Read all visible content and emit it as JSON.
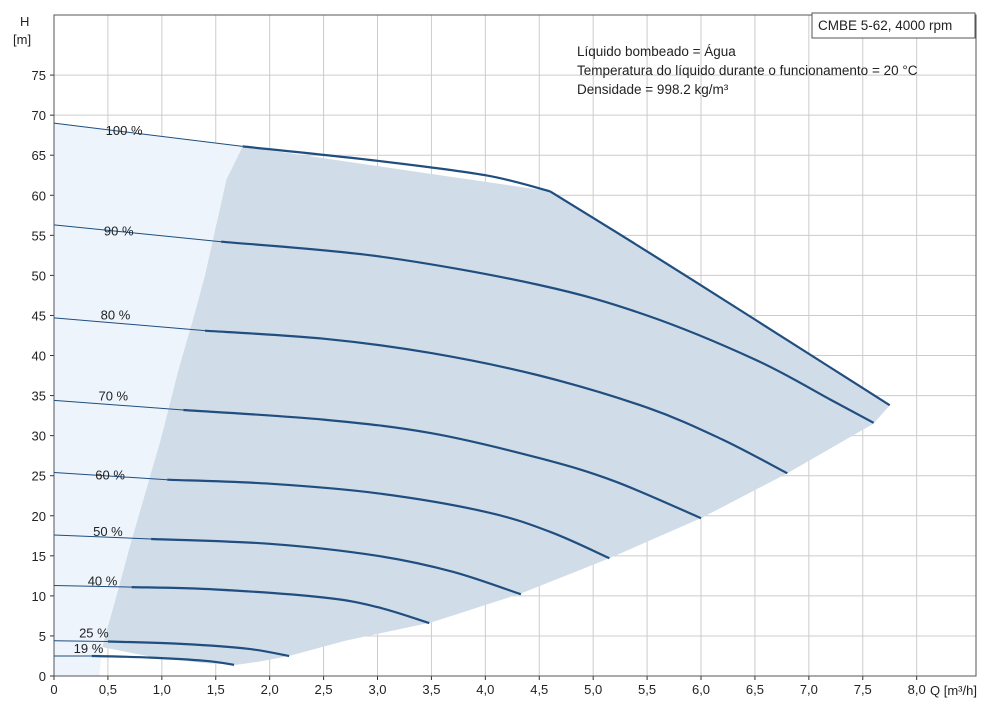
{
  "chart_data": {
    "type": "line",
    "title": "CMBE 5-62, 4000 rpm",
    "info_lines": [
      "Líquido bombeado = Água",
      "Temperatura do líquido durante o funcionamento = 20 °C",
      "Densidade = 998.2 kg/m³"
    ],
    "ylabel_top": "H",
    "ylabel_unit": "[m]",
    "xlabel": "Q [m³/h]",
    "xlim": [
      0,
      8.55
    ],
    "ylim": [
      0,
      82.5
    ],
    "grid": true,
    "x_ticks": [
      "0",
      "0,5",
      "1,0",
      "1,5",
      "2,0",
      "2,5",
      "3,0",
      "3,5",
      "4,0",
      "4,5",
      "5,0",
      "5,5",
      "6,0",
      "6,5",
      "7,0",
      "7,5",
      "8,0"
    ],
    "y_ticks": [
      "0",
      "5",
      "10",
      "15",
      "20",
      "25",
      "30",
      "35",
      "40",
      "45",
      "50",
      "55",
      "60",
      "65",
      "70",
      "75"
    ],
    "colors": {
      "curve": "#1f4e7f",
      "operating_area": "#d0dce8",
      "low_flow_area": "#edf4fc",
      "grid": "#cccccc"
    },
    "operating_area_boundary": [
      [
        0,
        0
      ],
      [
        0,
        69
      ],
      [
        1.7,
        66
      ],
      [
        1.6,
        62
      ],
      [
        1.55,
        58
      ],
      [
        1.45,
        53
      ],
      [
        1.35,
        48
      ],
      [
        1.2,
        41
      ],
      [
        1.05,
        33
      ],
      [
        0.9,
        26
      ],
      [
        0.75,
        19
      ],
      [
        0.65,
        13
      ],
      [
        0.55,
        7
      ],
      [
        0.45,
        3.5
      ],
      [
        0.4,
        0
      ],
      [
        1.7,
        0
      ],
      [
        1.7,
        1.5
      ],
      [
        2.2,
        2.6
      ],
      [
        3.5,
        6.7
      ],
      [
        4.33,
        10.3
      ],
      [
        5.15,
        14.7
      ],
      [
        6.0,
        19.7
      ],
      [
        6.8,
        25.3
      ],
      [
        7.6,
        31.5
      ],
      [
        7.75,
        33.8
      ],
      [
        4.6,
        60.5
      ],
      [
        1.7,
        66.1
      ]
    ],
    "series": [
      {
        "name": "100 %",
        "points": [
          [
            0,
            69
          ],
          [
            1.75,
            66.1
          ],
          [
            3.0,
            64.3
          ],
          [
            4.0,
            62.5
          ],
          [
            4.6,
            60.5
          ],
          [
            5.5,
            53
          ],
          [
            6.5,
            44.5
          ],
          [
            7.2,
            38.5
          ],
          [
            7.75,
            33.8
          ]
        ]
      },
      {
        "name": "90 %",
        "points": [
          [
            0,
            56.3
          ],
          [
            1.55,
            54.2
          ],
          [
            3.0,
            52.4
          ],
          [
            4.5,
            48.8
          ],
          [
            5.5,
            45
          ],
          [
            6.5,
            39.5
          ],
          [
            7.2,
            34.5
          ],
          [
            7.6,
            31.6
          ]
        ]
      },
      {
        "name": "80 %",
        "points": [
          [
            0,
            44.7
          ],
          [
            1.4,
            43.1
          ],
          [
            2.5,
            42.1
          ],
          [
            3.5,
            40.3
          ],
          [
            4.5,
            37.5
          ],
          [
            5.5,
            33.5
          ],
          [
            6.2,
            29.5
          ],
          [
            6.8,
            25.3
          ]
        ]
      },
      {
        "name": "70 %",
        "points": [
          [
            0,
            34.4
          ],
          [
            1.2,
            33.2
          ],
          [
            2.5,
            32
          ],
          [
            3.5,
            30.3
          ],
          [
            4.5,
            27.2
          ],
          [
            5.2,
            24.3
          ],
          [
            6.0,
            19.7
          ]
        ]
      },
      {
        "name": "60 %",
        "points": [
          [
            0,
            25.4
          ],
          [
            1.05,
            24.5
          ],
          [
            2.0,
            24
          ],
          [
            3.0,
            22.8
          ],
          [
            4.0,
            20.5
          ],
          [
            4.6,
            18
          ],
          [
            5.15,
            14.7
          ]
        ]
      },
      {
        "name": "50 %",
        "points": [
          [
            0,
            17.6
          ],
          [
            0.9,
            17.1
          ],
          [
            2.0,
            16.5
          ],
          [
            3.0,
            15
          ],
          [
            3.7,
            13
          ],
          [
            4.33,
            10.2
          ]
        ]
      },
      {
        "name": "40 %",
        "points": [
          [
            0,
            11.3
          ],
          [
            0.72,
            11.1
          ],
          [
            1.5,
            10.8
          ],
          [
            2.5,
            9.8
          ],
          [
            3.0,
            8.6
          ],
          [
            3.48,
            6.6
          ]
        ]
      },
      {
        "name": "25 %",
        "points": [
          [
            0,
            4.4
          ],
          [
            0.5,
            4.3
          ],
          [
            1.2,
            4
          ],
          [
            1.8,
            3.4
          ],
          [
            2.18,
            2.5
          ]
        ]
      },
      {
        "name": "19 %",
        "points": [
          [
            0,
            2.5
          ],
          [
            0.35,
            2.5
          ],
          [
            0.9,
            2.3
          ],
          [
            1.4,
            1.9
          ],
          [
            1.67,
            1.4
          ]
        ]
      }
    ]
  }
}
